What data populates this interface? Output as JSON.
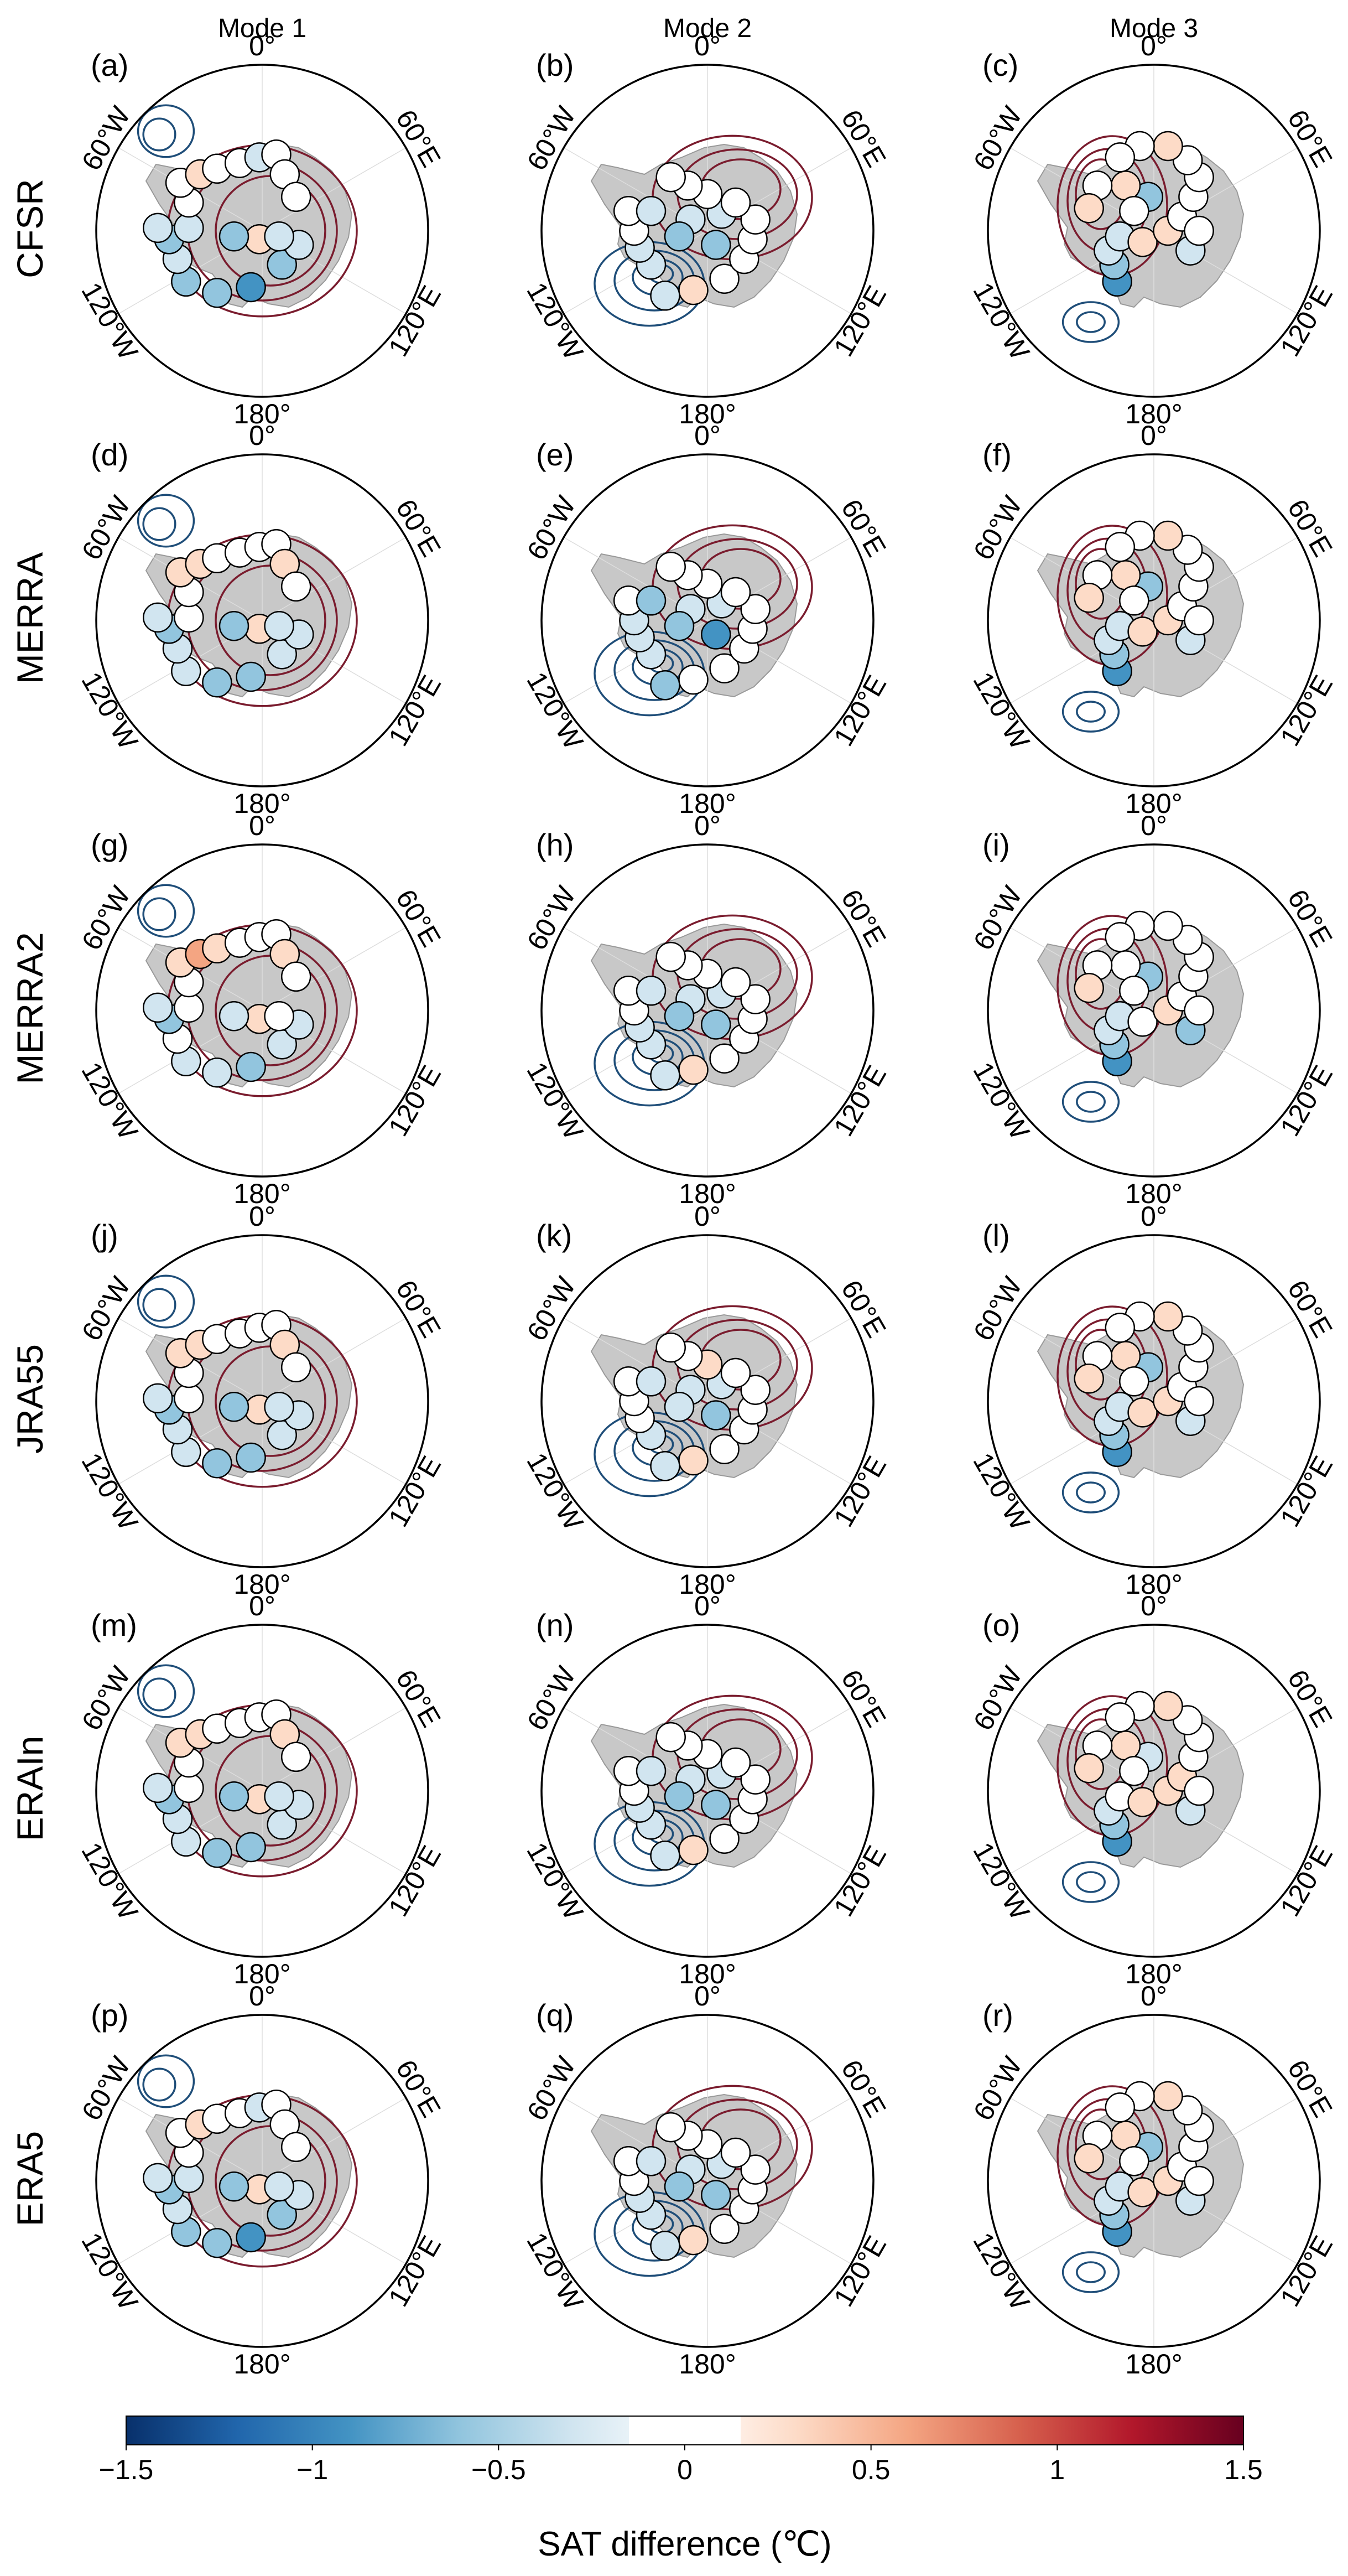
{
  "figure": {
    "columns": [
      "Mode 1",
      "Mode 2",
      "Mode 3"
    ],
    "rows": [
      "CFSR",
      "MERRA",
      "MERRA2",
      "JRA55",
      "ERAIn",
      "ERA5"
    ],
    "panel_letters": [
      "(a)",
      "(b)",
      "(c)",
      "(d)",
      "(e)",
      "(f)",
      "(g)",
      "(h)",
      "(i)",
      "(j)",
      "(k)",
      "(l)",
      "(m)",
      "(n)",
      "(o)",
      "(p)",
      "(q)",
      "(r)"
    ],
    "longitude_labels": {
      "top": "0°",
      "bottom": "180°",
      "upper_left": "60°W",
      "upper_right": "60°E",
      "lower_left": "120°W",
      "lower_right": "120°E"
    }
  },
  "colorbar": {
    "label": "SAT difference (℃)",
    "ticks": [
      "−1.5",
      "−1",
      "−0.5",
      "0",
      "0.5",
      "1",
      "1.5"
    ],
    "range": [
      -1.5,
      1.5
    ],
    "neutral_band": [
      -0.15,
      0.15
    ],
    "colors": [
      "#08306b",
      "#2166ac",
      "#4393c3",
      "#92c5de",
      "#d1e5f0",
      "#ffffff",
      "#fddbc7",
      "#f4a582",
      "#d6604d",
      "#b2182b",
      "#67001f"
    ]
  },
  "map_style": {
    "land_color": "#c8c8c8",
    "positive_contour_color": "#7a1c2e",
    "negative_contour_color": "#1f4e79",
    "zero_contour_color": "#ffffff"
  },
  "modes": {
    "mode1": {
      "stations": [
        [
          0.34,
          0.72,
          -0.5
        ],
        [
          0.46,
          0.7,
          -0.7
        ],
        [
          0.57,
          0.62,
          -0.4
        ],
        [
          0.63,
          0.55,
          -0.3
        ],
        [
          0.49,
          0.53,
          0.3
        ],
        [
          0.56,
          0.52,
          -0.2
        ],
        [
          0.4,
          0.52,
          -0.5
        ],
        [
          0.23,
          0.68,
          -0.4
        ],
        [
          0.2,
          0.6,
          -0.2
        ],
        [
          0.17,
          0.53,
          -0.6
        ],
        [
          0.13,
          0.49,
          -0.3
        ],
        [
          0.24,
          0.49,
          -0.1
        ],
        [
          0.24,
          0.4,
          0.0
        ],
        [
          0.21,
          0.33,
          0.2
        ],
        [
          0.28,
          0.3,
          0.4
        ],
        [
          0.34,
          0.28,
          0.1
        ],
        [
          0.42,
          0.26,
          0.0
        ],
        [
          0.49,
          0.24,
          -0.1
        ],
        [
          0.55,
          0.23,
          0.0
        ],
        [
          0.58,
          0.3,
          0.2
        ],
        [
          0.62,
          0.38,
          0.0
        ]
      ]
    },
    "mode2": {
      "stations": [
        [
          0.35,
          0.73,
          -0.4
        ],
        [
          0.45,
          0.71,
          0.2
        ],
        [
          0.56,
          0.67,
          0.0
        ],
        [
          0.63,
          0.6,
          0.0
        ],
        [
          0.66,
          0.53,
          0.0
        ],
        [
          0.67,
          0.46,
          0.0
        ],
        [
          0.53,
          0.55,
          -0.7
        ],
        [
          0.44,
          0.46,
          -0.3
        ],
        [
          0.4,
          0.52,
          -0.5
        ],
        [
          0.3,
          0.62,
          -0.3
        ],
        [
          0.26,
          0.56,
          -0.2
        ],
        [
          0.24,
          0.5,
          -0.1
        ],
        [
          0.22,
          0.43,
          0.0
        ],
        [
          0.3,
          0.43,
          -0.4
        ],
        [
          0.55,
          0.44,
          -0.3
        ],
        [
          0.6,
          0.4,
          0.0
        ],
        [
          0.5,
          0.37,
          0.1
        ],
        [
          0.43,
          0.34,
          0.0
        ],
        [
          0.37,
          0.31,
          0.0
        ]
      ]
    },
    "mode3": {
      "stations": [
        [
          0.37,
          0.68,
          -0.9
        ],
        [
          0.36,
          0.62,
          -0.6
        ],
        [
          0.34,
          0.57,
          -0.3
        ],
        [
          0.38,
          0.52,
          -0.2
        ],
        [
          0.46,
          0.54,
          0.2
        ],
        [
          0.55,
          0.5,
          0.3
        ],
        [
          0.6,
          0.45,
          0.1
        ],
        [
          0.64,
          0.38,
          0.0
        ],
        [
          0.66,
          0.31,
          0.0
        ],
        [
          0.62,
          0.25,
          0.0
        ],
        [
          0.55,
          0.2,
          0.2
        ],
        [
          0.45,
          0.2,
          0.0
        ],
        [
          0.38,
          0.24,
          0.0
        ],
        [
          0.48,
          0.38,
          -0.5
        ],
        [
          0.4,
          0.34,
          0.2
        ],
        [
          0.3,
          0.34,
          0.0
        ],
        [
          0.27,
          0.42,
          0.3
        ],
        [
          0.43,
          0.43,
          0.0
        ],
        [
          0.63,
          0.57,
          -0.4
        ],
        [
          0.66,
          0.5,
          0.0
        ]
      ]
    }
  }
}
